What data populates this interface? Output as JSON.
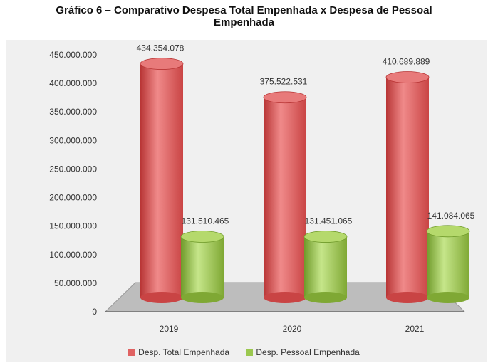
{
  "chart_data": {
    "type": "bar",
    "title_line1": "Gráfico 6 – Comparativo Despesa Total Empenhada x Despesa de Pessoal",
    "title_line2": "Empenhada",
    "categories": [
      "2019",
      "2020",
      "2021"
    ],
    "series": [
      {
        "name": "Desp. Total Empenhada",
        "color": "#e06262",
        "values": [
          434354078,
          375522531,
          410689889
        ],
        "labels": [
          "434.354.078",
          "375.522.531",
          "410.689.889"
        ]
      },
      {
        "name": "Desp. Pessoal Empenhada",
        "color": "#9bc84f",
        "values": [
          131510465,
          131451065,
          141084065
        ],
        "labels": [
          "131.510.465",
          "131.451.065",
          "141.084.065"
        ]
      }
    ],
    "ylim": [
      0,
      450000000
    ],
    "yticks": [
      "0",
      "50.000.000",
      "100.000.000",
      "150.000.000",
      "200.000.000",
      "250.000.000",
      "300.000.000",
      "350.000.000",
      "400.000.000",
      "450.000.000"
    ],
    "grid": false,
    "legend_position": "bottom",
    "style": "3d-cylinder"
  }
}
